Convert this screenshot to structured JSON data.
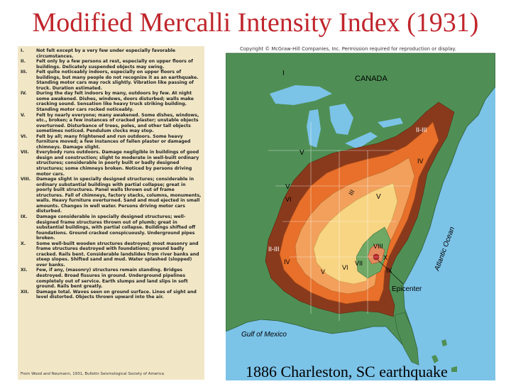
{
  "title": "Modified Mercalli Intensity Index (1931)",
  "copyright": "Copyright © McGraw-Hill Companies, Inc. Permission required for reproduction or display.",
  "caption": "1886 Charleston, SC earthquake",
  "source": "From Wood and Neumann, 1931, Bulletin Seismological Society of America",
  "colors": {
    "green": "#4f8f55",
    "brown": "#8a3a1c",
    "orange": "#e8702a",
    "light_orange": "#f2a05c",
    "yellow": "#f8d583",
    "water": "#7cc3e8",
    "legend_bg": "#f1e7c7"
  },
  "map": {
    "labels": {
      "canada": "CANADA",
      "gulf": "Gulf of Mexico",
      "atlantic": "Atlantic Ocean",
      "epicenter": "Epicenter",
      "i_top": "I",
      "ii_iii_ne": "II-III",
      "iv_ne": "IV",
      "v_lakes": "V",
      "ii_iii_w": "II-III",
      "v_w": "V",
      "vi_w": "VI",
      "iv_center": "IV",
      "vi_center": "VI",
      "iii_center": "III",
      "v_east": "V",
      "viii": "VIII",
      "x": "X",
      "ix": "IX",
      "vii": "VII",
      "vi_s": "VI",
      "v_s": "V",
      "iv_s": "IV",
      "ii_iii_sw": "II-III"
    }
  },
  "legend": [
    {
      "num": "I.",
      "text": "Not felt except by a very few under especially favorable circumstances."
    },
    {
      "num": "II.",
      "text": "Felt only by a few persons at rest, especially on upper floors of buildings. Delicately suspended objects may swing."
    },
    {
      "num": "III.",
      "text": "Felt quite noticeably indoors, especially on upper floors of buildings, but many people do not recognize it as an earthquake. Standing motor cars may rock slightly. Vibration like passing of truck. Duration estimated."
    },
    {
      "num": "IV.",
      "text": "During the day felt indoors by many, outdoors by few. At night some awakened. Dishes, windows, doors disturbed; walls make cracking sound. Sensation like heavy truck striking building. Standing motor cars rocked noticeably."
    },
    {
      "num": "V.",
      "text": "Felt by nearly everyone; many awakened. Some dishes, windows, etc., broken; a few instances of cracked plaster; unstable objects overturned. Disturbance of trees, poles, and other tall objects sometimes noticed. Pendulum clocks may stop."
    },
    {
      "num": "VI.",
      "text": "Felt by all; many frightened and run outdoors. Some heavy furniture moved; a few instances of fallen plaster or damaged chimneys. Damage slight."
    },
    {
      "num": "VII.",
      "text": "Everybody runs outdoors. Damage negligible in buildings of good design and construction; slight to moderate in well-built ordinary structures; considerable in poorly built or badly designed structures; some chimneys broken. Noticed by persons driving motor cars."
    },
    {
      "num": "VIII.",
      "text": "Damage slight in specially designed structures; considerable in ordinary substantial buildings with partial collapse; great in poorly built structures. Panel walls thrown out of frame structures. Fall of chimneys, factory stacks, columns, monuments, walls. Heavy furniture overturned. Sand and mud ejected in small amounts. Changes in well water. Persons driving motor cars disturbed."
    },
    {
      "num": "IX.",
      "text": "Damage considerable in specially designed structures; well-designed frame structures thrown out of plumb; great in substantial buildings, with partial collapse. Buildings shifted off foundations. Ground cracked conspicuously. Underground pipes broken."
    },
    {
      "num": "X.",
      "text": "Some well-built wooden structures destroyed; most masonry and frame structures destroyed with foundations; ground badly cracked. Rails bent. Considerable landslides from river banks and steep slopes. Shifted sand and mud. Water splashed (slopped) over banks."
    },
    {
      "num": "XI.",
      "text": "Few, if any, (masonry) structures remain standing. Bridges destroyed. Broad fissures in ground. Underground pipelines completely out of service. Earth slumps and land slips in soft ground. Rails bent greatly."
    },
    {
      "num": "XII.",
      "text": "Damage total. Waves seen on ground surface. Lines of sight and level distorted. Objects thrown upward into the air."
    }
  ]
}
